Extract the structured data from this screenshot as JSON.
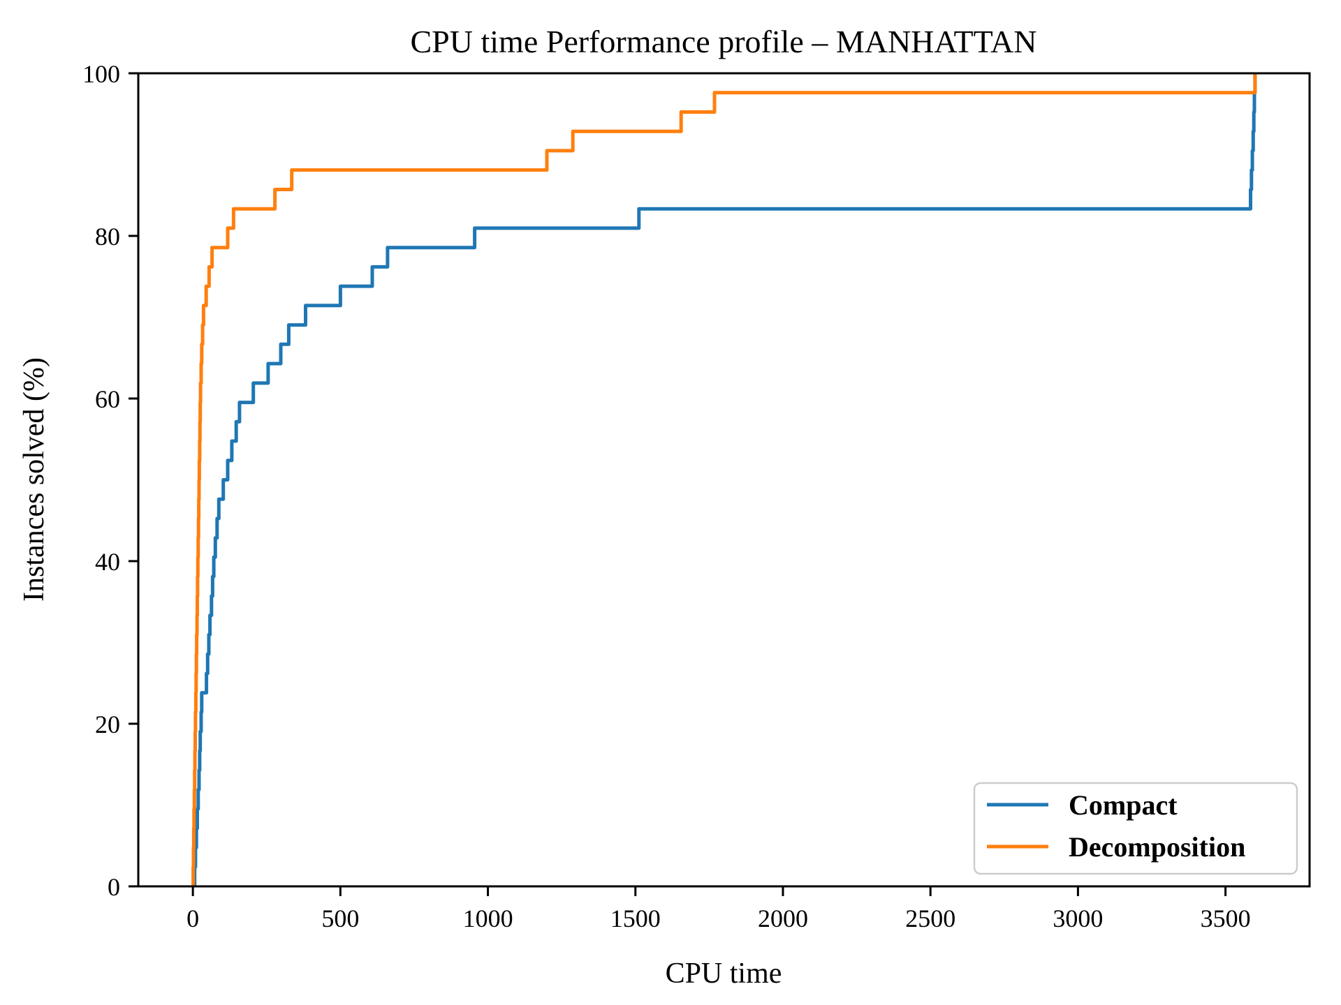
{
  "figure": {
    "background": "#ffffff",
    "text_color": "#000000",
    "spine_color": "#000000",
    "legend_border_color": "#cccccc"
  },
  "chart_data": {
    "type": "line",
    "step": "post",
    "title": "CPU time Performance profile – MANHATTAN",
    "xlabel": "CPU time",
    "ylabel": "Instances solved (%)",
    "xlim": [
      -185,
      3785
    ],
    "ylim": [
      0,
      100
    ],
    "xticks": [
      0,
      500,
      1000,
      1500,
      2000,
      2500,
      3000,
      3500
    ],
    "yticks": [
      0,
      20,
      40,
      60,
      80,
      100
    ],
    "grid": false,
    "legend_position": "lower right",
    "series": [
      {
        "name": "Compact",
        "color": "#1f77b4",
        "events": [
          [
            6,
            2.38
          ],
          [
            9,
            4.76
          ],
          [
            12,
            7.14
          ],
          [
            15,
            9.52
          ],
          [
            18,
            11.9
          ],
          [
            21,
            14.29
          ],
          [
            23,
            16.67
          ],
          [
            25,
            19.05
          ],
          [
            28,
            21.43
          ],
          [
            30,
            23.81
          ],
          [
            46,
            26.19
          ],
          [
            50,
            28.57
          ],
          [
            54,
            30.95
          ],
          [
            58,
            33.33
          ],
          [
            63,
            35.71
          ],
          [
            67,
            38.1
          ],
          [
            71,
            40.48
          ],
          [
            76,
            42.86
          ],
          [
            82,
            45.24
          ],
          [
            88,
            47.62
          ],
          [
            103,
            50
          ],
          [
            118,
            52.38
          ],
          [
            132,
            54.76
          ],
          [
            147,
            57.14
          ],
          [
            158,
            59.52
          ],
          [
            205,
            61.9
          ],
          [
            255,
            64.29
          ],
          [
            298,
            66.67
          ],
          [
            325,
            69.05
          ],
          [
            382,
            71.43
          ],
          [
            500,
            73.81
          ],
          [
            608,
            76.19
          ],
          [
            660,
            78.57
          ],
          [
            955,
            80.95
          ],
          [
            1512,
            83.33
          ],
          [
            3585,
            85.71
          ],
          [
            3588,
            88.1
          ],
          [
            3591,
            90.48
          ],
          [
            3594,
            92.86
          ],
          [
            3596,
            95.24
          ],
          [
            3598,
            97.62
          ],
          [
            3600,
            100
          ]
        ]
      },
      {
        "name": "Decomposition",
        "color": "#ff7f0e",
        "events": [
          [
            1,
            2.38
          ],
          [
            2,
            4.76
          ],
          [
            3,
            7.14
          ],
          [
            4,
            9.52
          ],
          [
            5,
            11.9
          ],
          [
            6,
            14.29
          ],
          [
            7,
            16.67
          ],
          [
            8,
            19.05
          ],
          [
            9,
            21.43
          ],
          [
            10,
            23.81
          ],
          [
            11,
            26.19
          ],
          [
            12,
            28.57
          ],
          [
            13,
            30.95
          ],
          [
            14,
            33.33
          ],
          [
            15,
            35.71
          ],
          [
            16,
            38.1
          ],
          [
            17,
            40.48
          ],
          [
            18,
            42.86
          ],
          [
            19,
            45.24
          ],
          [
            20,
            47.62
          ],
          [
            21,
            50
          ],
          [
            22,
            52.38
          ],
          [
            23,
            54.76
          ],
          [
            24,
            57.14
          ],
          [
            25,
            59.52
          ],
          [
            26,
            61.9
          ],
          [
            28,
            64.29
          ],
          [
            30,
            66.67
          ],
          [
            33,
            69.05
          ],
          [
            36,
            71.43
          ],
          [
            45,
            73.81
          ],
          [
            55,
            76.19
          ],
          [
            65,
            78.57
          ],
          [
            118,
            80.95
          ],
          [
            138,
            83.33
          ],
          [
            278,
            85.71
          ],
          [
            335,
            88.1
          ],
          [
            1200,
            90.48
          ],
          [
            1288,
            92.86
          ],
          [
            1655,
            95.24
          ],
          [
            1768,
            97.62
          ],
          [
            3600,
            100
          ]
        ]
      }
    ]
  }
}
